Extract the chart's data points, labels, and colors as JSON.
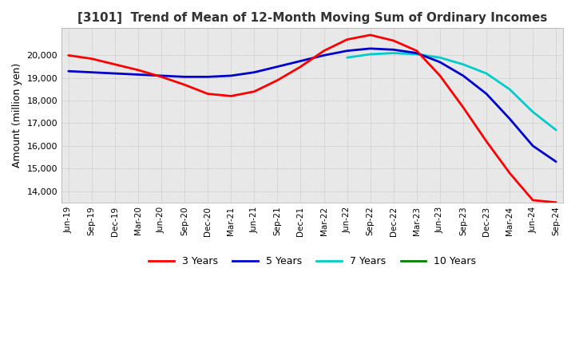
{
  "title": "[3101]  Trend of Mean of 12-Month Moving Sum of Ordinary Incomes",
  "ylabel": "Amount (million yen)",
  "ylim": [
    13500,
    21200
  ],
  "yticks": [
    14000,
    15000,
    16000,
    17000,
    18000,
    19000,
    20000
  ],
  "bg_color": "#e8e8e8",
  "grid_color": "#aaaaaa",
  "line_colors": {
    "3 Years": "#ff0000",
    "5 Years": "#0000cc",
    "7 Years": "#00cccc",
    "10 Years": "#008000"
  },
  "x_labels": [
    "Jun-19",
    "Sep-19",
    "Dec-19",
    "Mar-20",
    "Jun-20",
    "Sep-20",
    "Dec-20",
    "Mar-21",
    "Jun-21",
    "Sep-21",
    "Dec-21",
    "Mar-22",
    "Jun-22",
    "Sep-22",
    "Dec-22",
    "Mar-23",
    "Jun-23",
    "Sep-23",
    "Dec-23",
    "Mar-24",
    "Jun-24",
    "Sep-24"
  ],
  "series_3yr": [
    20000,
    19850,
    19600,
    19350,
    19050,
    18700,
    18300,
    18200,
    18400,
    18900,
    19500,
    20200,
    20700,
    20900,
    20650,
    20200,
    19100,
    17700,
    16200,
    14800,
    13600,
    13500
  ],
  "series_5yr": [
    19300,
    19250,
    19200,
    19150,
    19100,
    19050,
    19050,
    19100,
    19250,
    19500,
    19750,
    20000,
    20200,
    20300,
    20250,
    20100,
    19700,
    19100,
    18300,
    17200,
    16000,
    15300
  ],
  "series_7yr": [
    null,
    null,
    null,
    null,
    null,
    null,
    null,
    null,
    null,
    null,
    null,
    null,
    19900,
    20050,
    20100,
    20050,
    19900,
    19600,
    19200,
    18500,
    17500,
    16700
  ],
  "series_10yr": [
    null,
    null,
    null,
    null,
    null,
    null,
    null,
    null,
    null,
    null,
    null,
    null,
    null,
    null,
    null,
    null,
    null,
    null,
    null,
    null,
    null,
    null
  ]
}
